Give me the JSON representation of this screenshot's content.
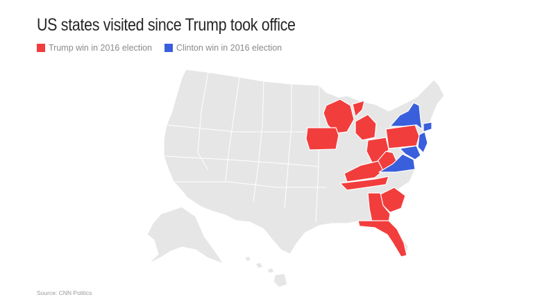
{
  "title": "US states visited since Trump took office",
  "legend": [
    {
      "label": "Trump win in 2016 election",
      "color": "#f23d3d"
    },
    {
      "label": "Clinton win in 2016 election",
      "color": "#3a5fdc"
    }
  ],
  "source": "Source: CNN Politics",
  "colors": {
    "trump_visited": "#f23d3d",
    "clinton_visited": "#3a5fdc",
    "not_visited": "#e6e6e6",
    "border": "#ffffff"
  },
  "visited_states": {
    "trump_win": [
      "Wisconsin",
      "Michigan",
      "Iowa",
      "Ohio",
      "Pennsylvania",
      "West Virginia",
      "Kentucky",
      "Tennessee",
      "South Carolina",
      "Georgia",
      "Florida"
    ],
    "clinton_win": [
      "New York",
      "New Jersey",
      "Maryland",
      "Delaware",
      "Virginia",
      "Connecticut"
    ]
  }
}
